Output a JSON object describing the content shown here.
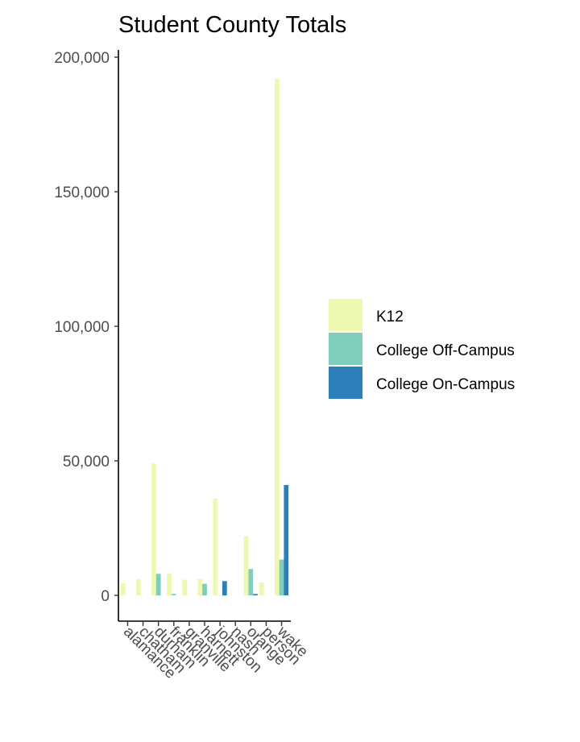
{
  "chart_data": {
    "type": "bar",
    "title": "Student County Totals",
    "xlabel": "",
    "ylabel": "",
    "ylim": [
      -8000,
      202000
    ],
    "yticks": [
      0,
      50000,
      100000,
      150000,
      200000
    ],
    "ytick_labels": [
      "0",
      "50,000",
      "100,000",
      "150,000",
      "200,000"
    ],
    "grid": false,
    "legend_position": "right",
    "categories": [
      "alamance",
      "chatham",
      "durham",
      "franklin",
      "granville",
      "harnett",
      "johnston",
      "nash",
      "orange",
      "person",
      "wake"
    ],
    "series": [
      {
        "name": "K12",
        "color": "#edf8b1",
        "values": [
          4500,
          6000,
          49000,
          8200,
          5800,
          6000,
          36000,
          0,
          22000,
          4800,
          192000
        ]
      },
      {
        "name": "College Off-Campus",
        "color": "#7fcdbb",
        "values": [
          0,
          0,
          8000,
          500,
          0,
          4300,
          0,
          0,
          9800,
          0,
          13300
        ]
      },
      {
        "name": "College On-Campus",
        "color": "#2c7fb8",
        "values": [
          0,
          0,
          0,
          0,
          0,
          0,
          5300,
          0,
          500,
          0,
          41000
        ]
      }
    ]
  }
}
